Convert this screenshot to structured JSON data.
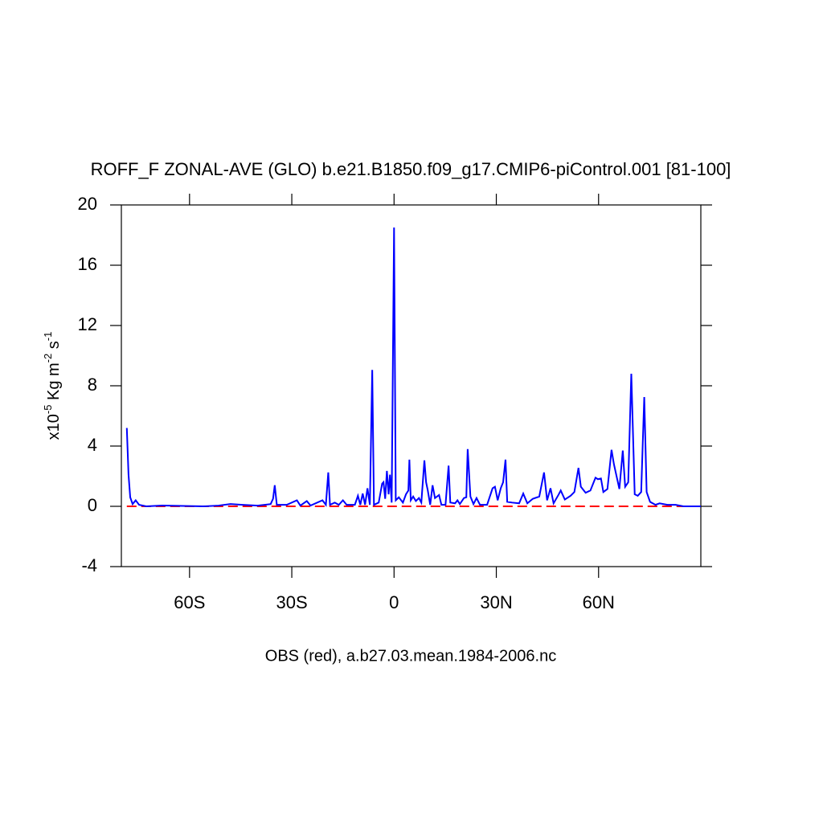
{
  "chart_data": {
    "type": "line",
    "title": "ROFF_F ZONAL-AVE (GLO) b.e21.B1850.f09_g17.CMIP6-piControl.001 [81-100]",
    "xlabel": "OBS (red), a.b27.03.mean.1984-2006.nc",
    "ylabel": [
      {
        "text": "x10"
      },
      {
        "text": "-5",
        "sup": true
      },
      {
        "text": " Kg m"
      },
      {
        "text": "-2",
        "sup": true
      },
      {
        "text": " s"
      },
      {
        "text": "-1",
        "sup": true
      }
    ],
    "xlim": [
      -80,
      90
    ],
    "ylim": [
      -4,
      20
    ],
    "xticks": [
      {
        "value": -60,
        "label": "60S"
      },
      {
        "value": -30,
        "label": "30S"
      },
      0,
      {
        "value": 30,
        "label": "30N"
      },
      {
        "value": 60,
        "label": "60N"
      }
    ],
    "yticks": [
      -4,
      0,
      4,
      8,
      12,
      16,
      20
    ],
    "series": [
      {
        "color": "#0000ff",
        "dashed": false,
        "x": [
          -78.4,
          -77.9,
          -77.4,
          -76.7,
          -75.8,
          -74.8,
          -72.7,
          -68,
          -56,
          -51.5,
          -48,
          -44.5,
          -40,
          -36.2,
          -35.5,
          -35,
          -34.4,
          -31.5,
          -28.5,
          -27.5,
          -25.6,
          -24.5,
          -21,
          -20,
          -19.3,
          -18.8,
          -17.4,
          -16.2,
          -15,
          -13.9,
          -11.5,
          -10.6,
          -9.9,
          -9.2,
          -8.5,
          -7.8,
          -7.1,
          -6.4,
          -5.9,
          -4.5,
          -3.5,
          -3.1,
          -2.6,
          -2.1,
          -1.6,
          -1.2,
          -0.7,
          0,
          0.5,
          1.4,
          2.6,
          3.5,
          4.2,
          4.5,
          4.9,
          5.6,
          6.4,
          7.3,
          8,
          8.9,
          9.4,
          9.9,
          10.6,
          11.3,
          12,
          13.2,
          13.9,
          15.1,
          16,
          16.5,
          17.9,
          18.6,
          19.3,
          20.5,
          21.2,
          21.6,
          22.4,
          23.3,
          24.2,
          25.2,
          27.3,
          28.9,
          29.6,
          30.4,
          31.3,
          32,
          32.7,
          33.2,
          34.6,
          36.7,
          37.9,
          39.1,
          40.7,
          42.6,
          44,
          44.9,
          45.9,
          46.8,
          48.2,
          48.9,
          50.1,
          51.8,
          52.9,
          54.1,
          54.8,
          56.2,
          57.6,
          59.1,
          59.8,
          60.7,
          61.4,
          62.6,
          63.8,
          64.5,
          66.1,
          67.1,
          67.8,
          68.7,
          69.6,
          70.6,
          71.5,
          72.5,
          73.4,
          74.1,
          75.1,
          76.7,
          77.9,
          80.2,
          82.6,
          84.9,
          90
        ],
        "values": [
          5.2,
          2.1,
          0.6,
          0.15,
          0.4,
          0.1,
          0,
          0.05,
          0,
          0.05,
          0.15,
          0.1,
          0.05,
          0.15,
          0.5,
          1.4,
          0.1,
          0.1,
          0.4,
          0.05,
          0.35,
          0.05,
          0.4,
          0.1,
          2.25,
          0.1,
          0.25,
          0.1,
          0.4,
          0.1,
          0.1,
          0.7,
          0.1,
          0.85,
          0.1,
          1.2,
          0.1,
          9.05,
          0.1,
          0.25,
          1.5,
          1.6,
          0.5,
          2.35,
          0.8,
          2.1,
          0.25,
          18.5,
          0.4,
          0.6,
          0.25,
          0.8,
          1.05,
          3.1,
          0.4,
          0.65,
          0.35,
          0.55,
          0.25,
          3.05,
          1.6,
          1.05,
          0.1,
          1.4,
          0.55,
          0.75,
          0.1,
          0.1,
          2.7,
          0.25,
          0.2,
          0.4,
          0.15,
          0.55,
          0.6,
          3.8,
          0.65,
          0.15,
          0.55,
          0.1,
          0.1,
          1.2,
          1.3,
          0.4,
          1.2,
          1.6,
          3.1,
          0.3,
          0.25,
          0.2,
          0.85,
          0.2,
          0.5,
          0.65,
          2.25,
          0.4,
          1.2,
          0.2,
          0.75,
          1.05,
          0.45,
          0.7,
          0.95,
          2.55,
          1.3,
          0.9,
          1.05,
          1.9,
          1.8,
          1.85,
          0.95,
          1.15,
          3.75,
          2.8,
          1.15,
          3.7,
          1.3,
          1.6,
          8.8,
          0.8,
          0.7,
          0.95,
          7.25,
          0.95,
          0.3,
          0.1,
          0.2,
          0.1,
          0.1,
          0,
          0
        ]
      },
      {
        "color": "#ff0000",
        "dashed": true,
        "x": [
          -78.4,
          90
        ],
        "values": [
          0,
          0
        ]
      }
    ]
  }
}
